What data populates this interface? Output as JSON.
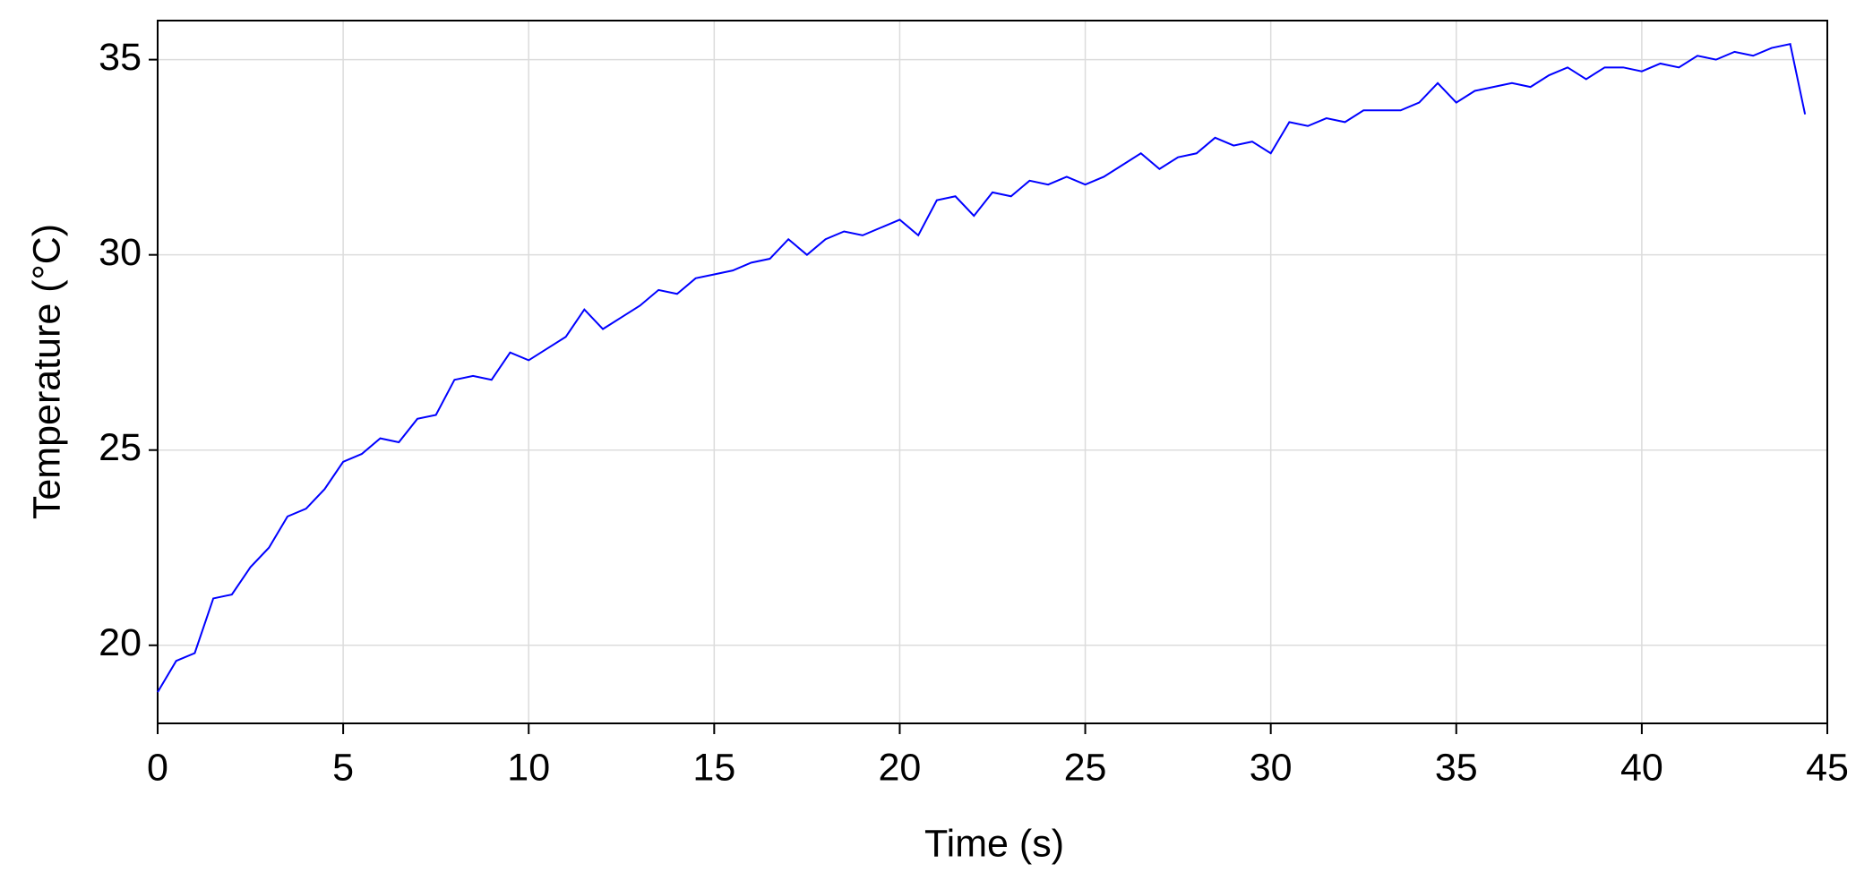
{
  "chart_data": {
    "type": "line",
    "x_label": "Time (s)",
    "y_label": "Temperature (°C)",
    "x": [
      0,
      0.5,
      1,
      1.5,
      2,
      2.5,
      3,
      3.5,
      4,
      4.5,
      5,
      5.5,
      6,
      6.5,
      7,
      7.5,
      8,
      8.5,
      9,
      9.5,
      10,
      10.5,
      11,
      11.5,
      12,
      12.5,
      13,
      13.5,
      14,
      14.5,
      15,
      15.5,
      16,
      16.5,
      17,
      17.5,
      18,
      18.5,
      19,
      19.5,
      20,
      20.5,
      21,
      21.5,
      22,
      22.5,
      23,
      23.5,
      24,
      24.5,
      25,
      25.5,
      26,
      26.5,
      27,
      27.5,
      28,
      28.5,
      29,
      29.5,
      30,
      30.5,
      31,
      31.5,
      32,
      32.5,
      33,
      33.5,
      34,
      34.5,
      35,
      35.5,
      36,
      36.5,
      37,
      37.5,
      38,
      38.5,
      39,
      39.5,
      40,
      40.5,
      41,
      41.5,
      42,
      42.5,
      43,
      43.5,
      44,
      44.4
    ],
    "series": [
      {
        "color": "#0000ff",
        "values": [
          18.8,
          19.6,
          19.8,
          21.2,
          21.3,
          22.0,
          22.5,
          23.3,
          23.5,
          24.0,
          24.7,
          24.9,
          25.3,
          25.2,
          25.8,
          25.9,
          26.8,
          26.9,
          26.8,
          27.5,
          27.3,
          27.6,
          27.9,
          28.6,
          28.1,
          28.4,
          28.7,
          29.1,
          29.0,
          29.4,
          29.5,
          29.6,
          29.8,
          29.9,
          30.4,
          30.0,
          30.4,
          30.6,
          30.5,
          30.7,
          30.9,
          30.5,
          31.4,
          31.5,
          31.0,
          31.6,
          31.5,
          31.9,
          31.8,
          32.0,
          31.8,
          32.0,
          32.3,
          32.6,
          32.2,
          32.5,
          32.6,
          33.0,
          32.8,
          32.9,
          32.6,
          33.4,
          33.3,
          33.5,
          33.4,
          33.7,
          33.7,
          33.7,
          33.9,
          34.4,
          33.9,
          34.2,
          34.3,
          34.4,
          34.3,
          34.6,
          34.8,
          34.5,
          34.8,
          34.8,
          34.7,
          34.9,
          34.8,
          35.1,
          35.0,
          35.2,
          35.1,
          35.3,
          35.4,
          33.6
        ]
      }
    ],
    "xlim": [
      0,
      45
    ],
    "xticks": [
      0,
      5,
      10,
      15,
      20,
      25,
      30,
      35,
      40,
      45
    ],
    "ylim": [
      18,
      36
    ],
    "yticks": [
      20,
      25,
      30,
      35
    ],
    "grid": true
  }
}
